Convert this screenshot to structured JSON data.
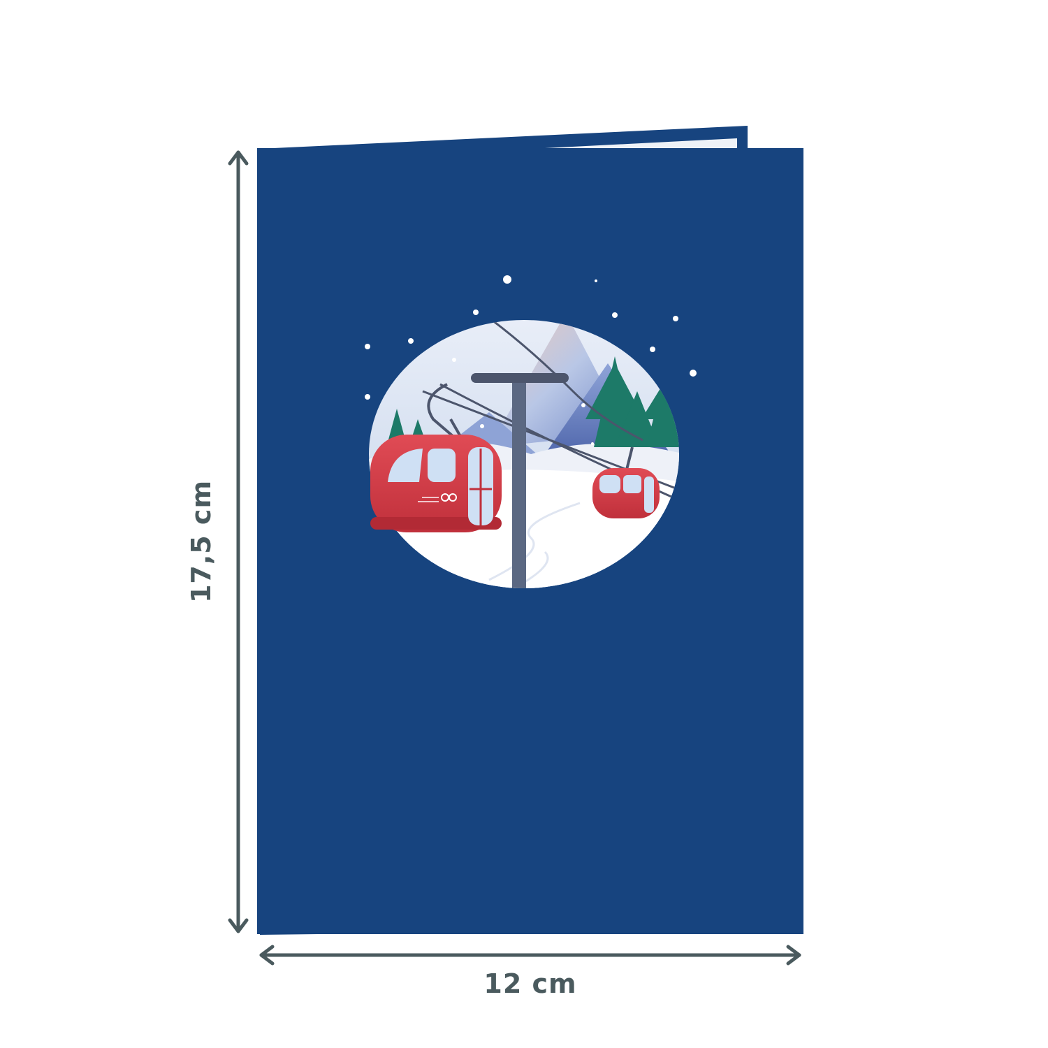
{
  "dimensions": {
    "height_label": "17,5 cm",
    "width_label": "12 cm"
  },
  "colors": {
    "card_blue": "#17447f",
    "card_back_blue": "#17447f",
    "inner_page": "#f4f6f9",
    "dimension_lines": "#4a5a5e",
    "gondola_red": "#d63a45",
    "tree_green": "#1d7a68",
    "snow": "#ffffff"
  },
  "icons": {
    "vertical_arrow": "double-arrow-vertical",
    "horizontal_arrow": "double-arrow-horizontal"
  }
}
